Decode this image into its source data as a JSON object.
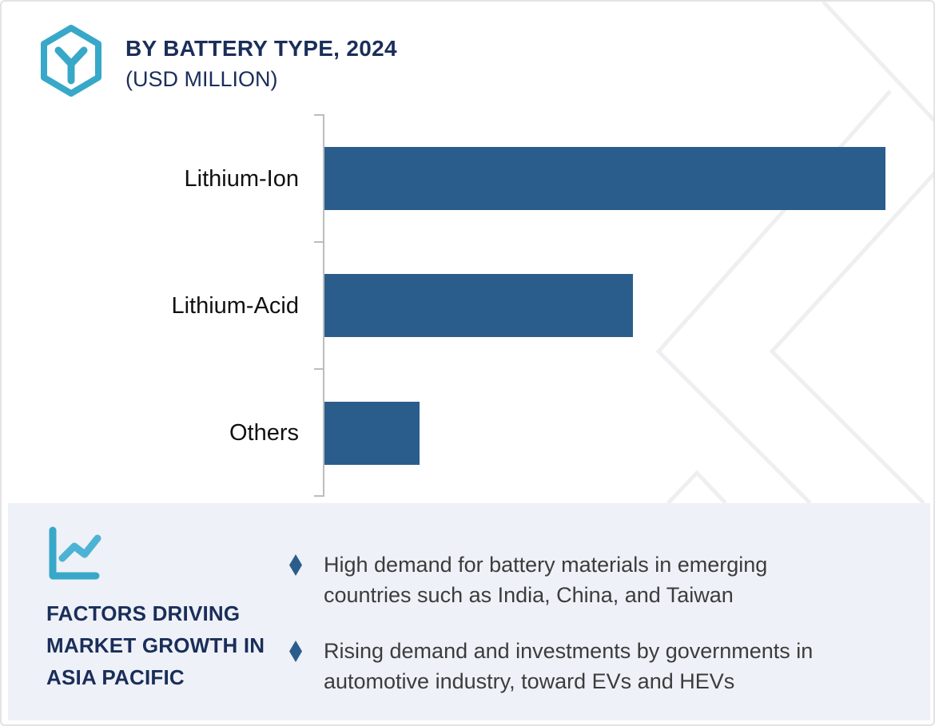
{
  "header": {
    "logo": "hexagon-y-logo",
    "title": "BY BATTERY TYPE, 2024",
    "subtitle": "(USD MILLION)"
  },
  "chart_data": {
    "type": "bar",
    "orientation": "horizontal",
    "title": "BY BATTERY TYPE, 2024 (USD MILLION)",
    "categories": [
      "Lithium-Ion",
      "Lithium-Acid",
      "Others"
    ],
    "values": [
      100,
      55,
      17
    ],
    "value_note": "no numeric axis or data labels shown; values estimated as % of longest bar",
    "xlabel": "",
    "ylabel": "",
    "grid": false,
    "legend": false,
    "bar_color": "#2b5d8c",
    "axis_color": "#bdbdbd"
  },
  "factors": {
    "icon": "line-chart-icon",
    "heading": "FACTORS DRIVING MARKET GROWTH IN ASIA PACIFIC",
    "bullet_marker": "diamond",
    "bullet_color": "#2b5d8c",
    "bullets": [
      {
        "lines": [
          "High demand for battery materials in emerging",
          "countries such as India, China, and Taiwan"
        ]
      },
      {
        "lines": [
          "Rising demand and investments by governments in",
          "automotive industry, toward EVs and HEVs"
        ]
      }
    ]
  },
  "colors": {
    "accent_teal": "#38a8c9",
    "accent_teal_light": "#4cb3d4",
    "navy": "#1a2e5a",
    "panel_bg": "#eef1f7",
    "body_text": "#3c3c3c",
    "watermark": "#efeff2"
  }
}
